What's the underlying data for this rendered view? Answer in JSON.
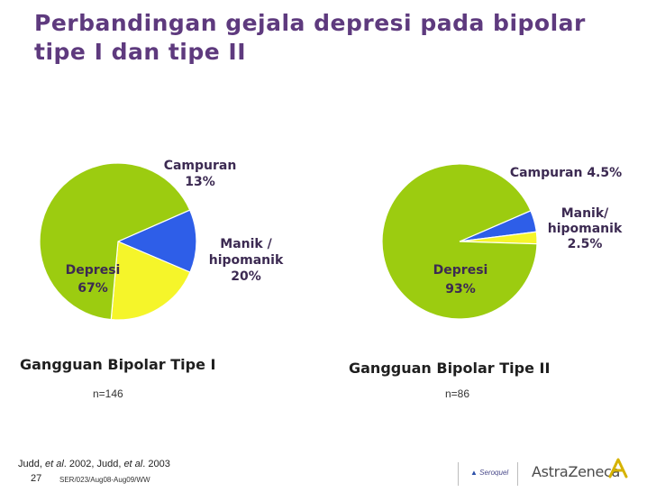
{
  "title": "Perbandingan gejala depresi pada bipolar tipe I dan tipe II",
  "chart_data": [
    {
      "type": "pie",
      "title": "Gangguan Bipolar Tipe I",
      "note": "n=146",
      "slices": [
        {
          "label_lines": [
            "Campuran",
            "13%"
          ],
          "value": 13,
          "color": "#2e5ee8"
        },
        {
          "label_lines": [
            "Manik /",
            "hipomanik",
            "20%"
          ],
          "value": 20,
          "color": "#f5f52a"
        },
        {
          "label_lines": [
            "Depresi",
            "67%"
          ],
          "value": 67,
          "color": "#9ccc10"
        }
      ]
    },
    {
      "type": "pie",
      "title": "Gangguan Bipolar Tipe II",
      "note": "n=86",
      "slices": [
        {
          "label_lines": [
            "Campuran 4.5%"
          ],
          "value": 4.5,
          "color": "#2e5ee8"
        },
        {
          "label_lines": [
            "Manik/",
            "hipomanik",
            "2.5%"
          ],
          "value": 2.5,
          "color": "#f5f52a"
        },
        {
          "label_lines": [
            "Depresi",
            "93%"
          ],
          "value": 93,
          "color": "#9ccc10"
        }
      ]
    }
  ],
  "footer": {
    "reference_parts": [
      "Judd, ",
      "et al",
      ". 2002, Judd, ",
      "et al",
      ". 2003"
    ],
    "page_number": "27",
    "code": "SER/023/Aug08-Aug09/WW",
    "seroquel_logo": "Seroquel",
    "company": "AstraZeneca"
  },
  "colors": {
    "title": "#5e3a7e",
    "blue": "#2e5ee8",
    "yellow": "#f5f52a",
    "green": "#9ccc10"
  }
}
